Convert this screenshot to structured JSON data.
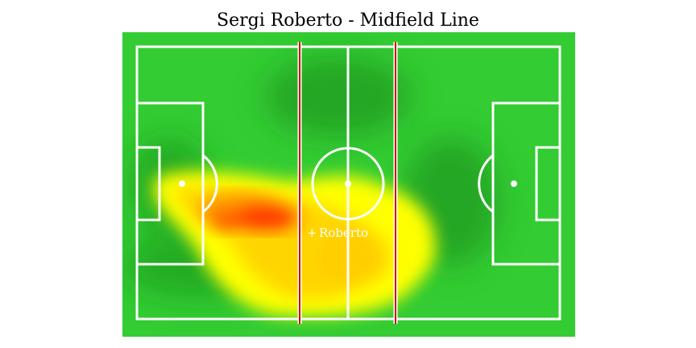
{
  "title": "Sergi Roberto - Midfield Line",
  "player": {
    "label": "Roberto",
    "marker_symbol": "+",
    "average_position_pct": {
      "x": 43,
      "y": 57
    }
  },
  "pitch": {
    "grass_color": "#33cc33",
    "line_color": "#ffffff",
    "midfield_line_color": "#cc0000",
    "midfield_band_pct": [
      38,
      62
    ]
  },
  "heatmap": {
    "colors": [
      "#1fa31f",
      "#33cc33",
      "#ffff00",
      "#ffd000",
      "#ff9900",
      "#ff2200"
    ],
    "hotspots": [
      {
        "x": 30,
        "y": 50,
        "intensity": 1.0
      },
      {
        "x": 22,
        "y": 47,
        "intensity": 0.85
      },
      {
        "x": 12,
        "y": 42,
        "intensity": 0.7
      },
      {
        "x": 44,
        "y": 60,
        "intensity": 0.8
      },
      {
        "x": 52,
        "y": 55,
        "intensity": 0.7
      },
      {
        "x": 48,
        "y": 75,
        "intensity": 0.7
      },
      {
        "x": 38,
        "y": 82,
        "intensity": 0.6
      },
      {
        "x": 60,
        "y": 62,
        "intensity": 0.5
      },
      {
        "x": 26,
        "y": 65,
        "intensity": 0.55
      }
    ]
  }
}
